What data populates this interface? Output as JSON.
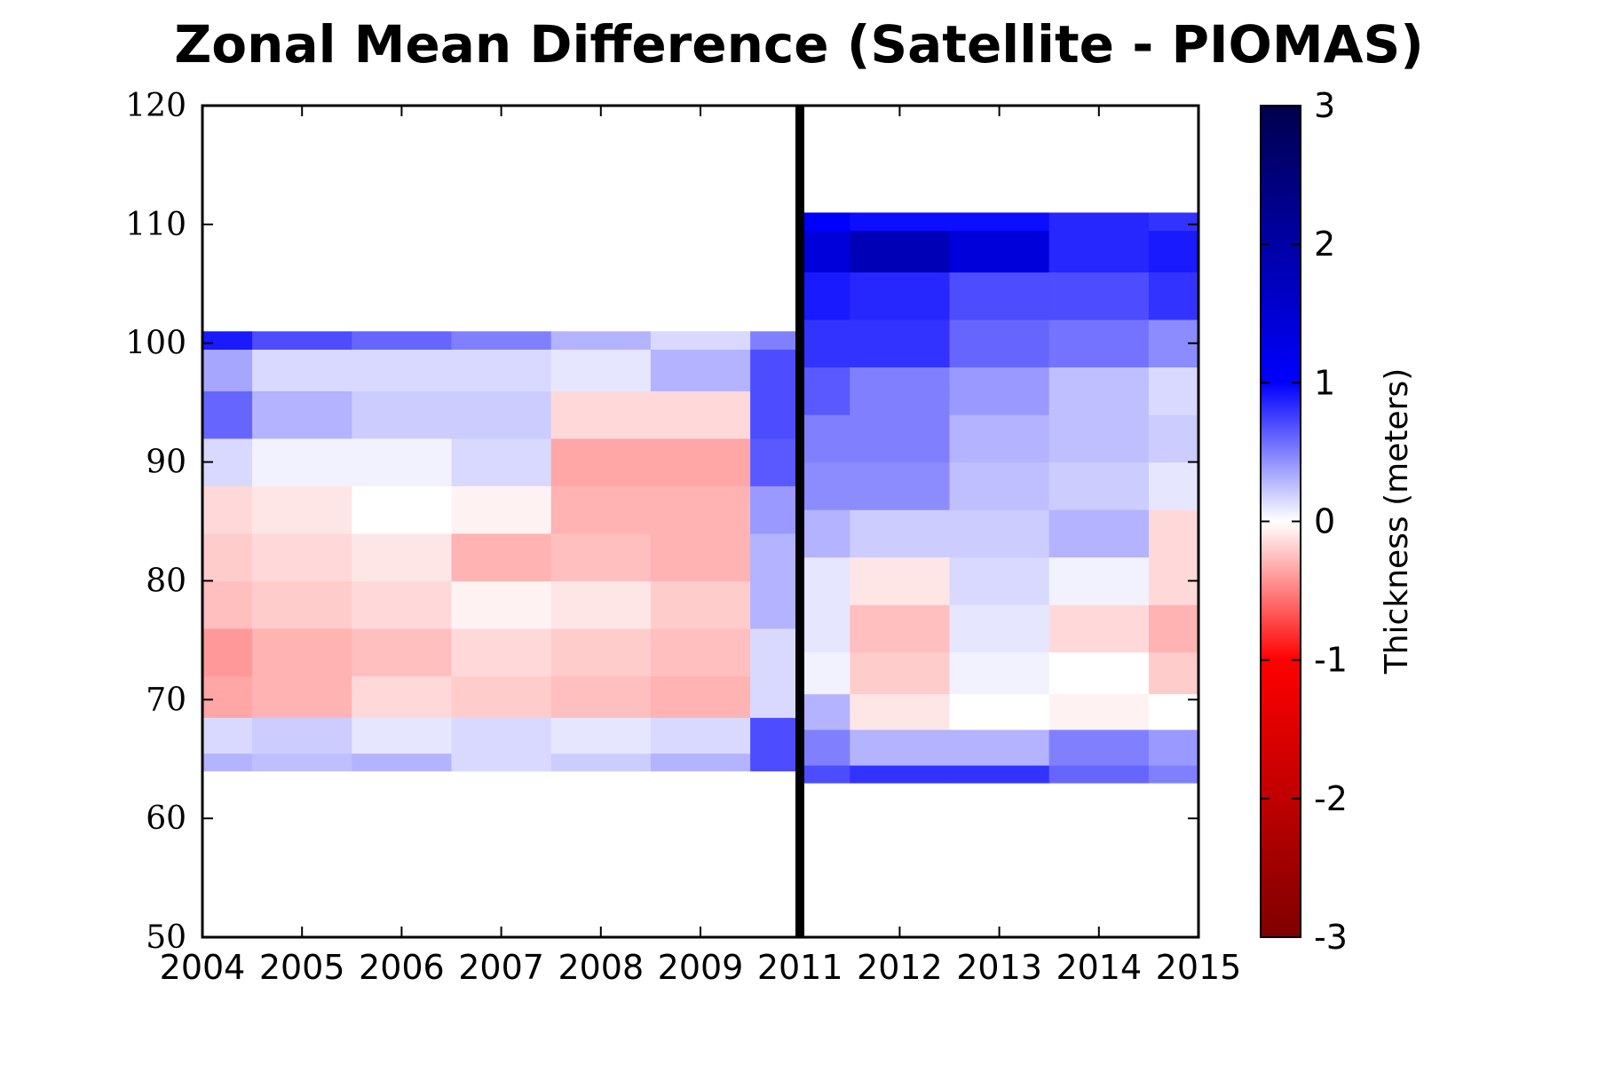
{
  "chart_data": {
    "type": "heatmap",
    "title": "Zonal Mean Difference (Satellite - PIOMAS)",
    "xlabel": "",
    "ylabel": "",
    "x_tick_labels": [
      "2004",
      "2005",
      "2006",
      "2007",
      "2008",
      "2009",
      "2011",
      "2012",
      "2013",
      "2014",
      "2015"
    ],
    "y_ticks": [
      50,
      60,
      70,
      80,
      90,
      100,
      110,
      120
    ],
    "ylim": [
      50,
      120
    ],
    "divider_at": "2011",
    "colorbar": {
      "label": "Thickness (meters)",
      "range": [
        -3,
        3
      ],
      "ticks": [
        "3",
        "2",
        "1",
        "0",
        "-1",
        "-2",
        "-3"
      ],
      "colormap": "seismic_reversed"
    },
    "series": [
      {
        "name": "",
        "y_levels": [
          64,
          67,
          70,
          74,
          78,
          82,
          86,
          90,
          94,
          98,
          101
        ],
        "values": [
          [
            0.6,
            0.3,
            -0.7,
            -0.8,
            -0.5,
            -0.4,
            -0.3,
            0.3,
            1.2,
            0.7,
            1.8
          ],
          [
            0.5,
            0.4,
            -0.6,
            -0.6,
            -0.4,
            -0.3,
            -0.2,
            0.1,
            0.6,
            0.3,
            1.4
          ],
          [
            0.6,
            0.2,
            -0.3,
            -0.5,
            -0.3,
            -0.2,
            0.0,
            0.1,
            0.4,
            0.3,
            1.2
          ],
          [
            0.3,
            0.3,
            -0.4,
            -0.3,
            -0.1,
            -0.6,
            -0.1,
            0.3,
            0.4,
            0.3,
            1.0
          ],
          [
            0.4,
            0.2,
            -0.5,
            -0.4,
            -0.2,
            -0.5,
            -0.6,
            -0.7,
            -0.3,
            0.2,
            0.6
          ],
          [
            0.6,
            0.3,
            -0.6,
            -0.5,
            -0.4,
            -0.6,
            -0.6,
            -0.7,
            -0.3,
            0.6,
            0.3
          ],
          [
            1.4,
            1.4,
            0.3,
            0.3,
            0.6,
            0.6,
            0.8,
            1.3,
            1.4,
            1.4,
            1.0
          ]
        ],
        "x_index": [
          0,
          1,
          2,
          3,
          4,
          5,
          6
        ]
      },
      {
        "name": "",
        "y_levels": [
          63,
          66,
          69,
          72,
          76,
          80,
          84,
          88,
          92,
          96,
          100,
          104,
          108,
          111
        ],
        "values": [
          [
            1.4,
            1.0,
            0.6,
            0.1,
            0.2,
            0.2,
            0.6,
            0.9,
            1.0,
            1.3,
            1.6,
            1.8,
            2.2,
            2.0
          ],
          [
            1.6,
            0.6,
            -0.2,
            -0.4,
            -0.5,
            -0.2,
            0.4,
            0.9,
            1.0,
            1.0,
            1.6,
            1.7,
            2.4,
            1.9
          ],
          [
            1.6,
            0.6,
            0.0,
            0.1,
            0.2,
            0.3,
            0.4,
            0.5,
            0.6,
            0.8,
            1.2,
            1.4,
            2.2,
            1.9
          ],
          [
            1.2,
            1.0,
            -0.1,
            0.0,
            -0.3,
            0.1,
            0.6,
            0.4,
            0.5,
            0.5,
            1.1,
            1.4,
            1.7,
            1.7
          ],
          [
            1.0,
            0.8,
            0.0,
            -0.4,
            -0.6,
            -0.3,
            -0.3,
            0.2,
            0.4,
            0.3,
            0.9,
            1.6,
            1.8,
            1.6
          ]
        ],
        "x_index": [
          6,
          7,
          8,
          9,
          10
        ]
      }
    ]
  }
}
